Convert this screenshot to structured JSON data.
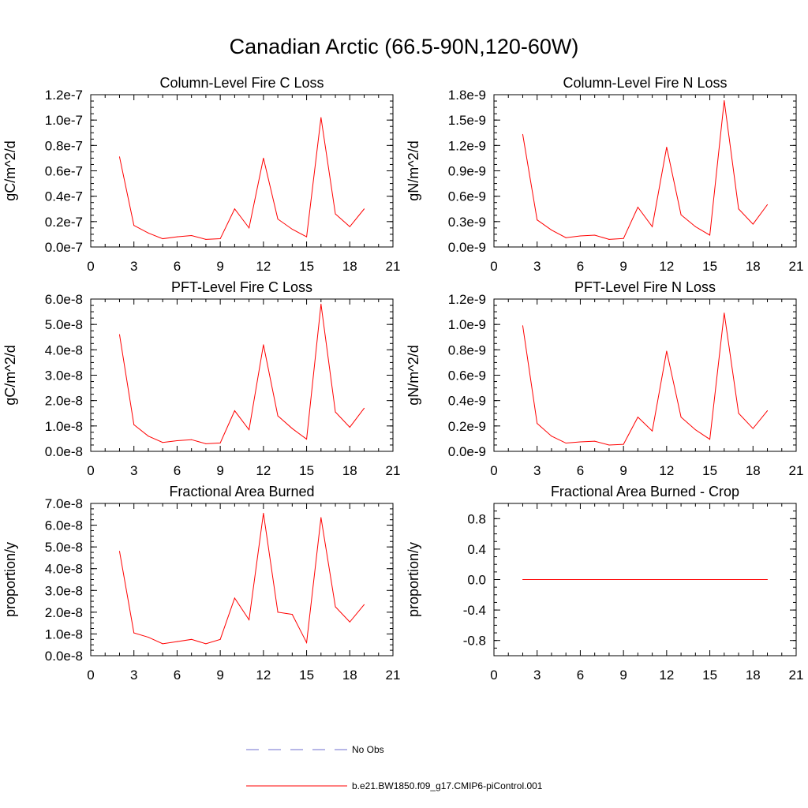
{
  "title": "Canadian Arctic (66.5-90N,120-60W)",
  "colors": {
    "series": "#ff0000",
    "obs": "#6f6fcf",
    "axis": "#000000"
  },
  "legend": {
    "obs_label": "No Obs",
    "model_label": "b.e21.BW1850.f09_g17.CMIP6-piControl.001"
  },
  "chart_data": [
    {
      "type": "line",
      "title": "Column-Level Fire C Loss",
      "ylabel": "gC/m^2/d",
      "xlim": [
        0,
        21
      ],
      "xticks": [
        "0",
        "3",
        "6",
        "9",
        "12",
        "15",
        "18",
        "21"
      ],
      "ylim": [
        0,
        1.2e-07
      ],
      "yticks": [
        "0.0e-7",
        "0.2e-7",
        "0.4e-7",
        "0.6e-7",
        "0.8e-7",
        "1.0e-7",
        "1.2e-7"
      ],
      "series": [
        {
          "name": "b.e21.BW1850.f09_g17.CMIP6-piControl.001",
          "x": [
            2,
            3,
            4,
            5,
            6,
            7,
            8,
            9,
            10,
            11,
            12,
            13,
            14,
            15,
            16,
            17,
            18,
            19
          ],
          "values": [
            7.1e-08,
            1.7e-08,
            1.1e-08,
            6.5e-09,
            8e-09,
            9e-09,
            6e-09,
            6.5e-09,
            3e-08,
            1.5e-08,
            7e-08,
            2.2e-08,
            1.4e-08,
            8e-09,
            1.02e-07,
            2.6e-08,
            1.6e-08,
            3e-08
          ]
        }
      ]
    },
    {
      "type": "line",
      "title": "Column-Level Fire N Loss",
      "ylabel": "gN/m^2/d",
      "xlim": [
        0,
        21
      ],
      "xticks": [
        "0",
        "3",
        "6",
        "9",
        "12",
        "15",
        "18",
        "21"
      ],
      "ylim": [
        0,
        1.8e-09
      ],
      "yticks": [
        "0.0e-9",
        "0.3e-9",
        "0.6e-9",
        "0.9e-9",
        "1.2e-9",
        "1.5e-9",
        "1.8e-9"
      ],
      "series": [
        {
          "name": "b.e21.BW1850.f09_g17.CMIP6-piControl.001",
          "x": [
            2,
            3,
            4,
            5,
            6,
            7,
            8,
            9,
            10,
            11,
            12,
            13,
            14,
            15,
            16,
            17,
            18,
            19
          ],
          "values": [
            1.33e-09,
            3.2e-10,
            2e-10,
            1.1e-10,
            1.3e-10,
            1.4e-10,
            9e-11,
            1e-10,
            4.7e-10,
            2.4e-10,
            1.18e-09,
            3.8e-10,
            2.4e-10,
            1.4e-10,
            1.73e-09,
            4.5e-10,
            2.7e-10,
            5e-10
          ]
        }
      ]
    },
    {
      "type": "line",
      "title": "PFT-Level Fire C Loss",
      "ylabel": "gC/m^2/d",
      "xlim": [
        0,
        21
      ],
      "xticks": [
        "0",
        "3",
        "6",
        "9",
        "12",
        "15",
        "18",
        "21"
      ],
      "ylim": [
        0,
        6e-08
      ],
      "yticks": [
        "0.0e-8",
        "1.0e-8",
        "2.0e-8",
        "3.0e-8",
        "4.0e-8",
        "5.0e-8",
        "6.0e-8"
      ],
      "series": [
        {
          "name": "b.e21.BW1850.f09_g17.CMIP6-piControl.001",
          "x": [
            2,
            3,
            4,
            5,
            6,
            7,
            8,
            9,
            10,
            11,
            12,
            13,
            14,
            15,
            16,
            17,
            18,
            19
          ],
          "values": [
            4.6e-08,
            1.05e-08,
            6e-09,
            3.5e-09,
            4.2e-09,
            4.6e-09,
            3e-09,
            3.3e-09,
            1.6e-08,
            8.5e-09,
            4.2e-08,
            1.4e-08,
            9e-09,
            4.8e-09,
            5.8e-08,
            1.55e-08,
            9.5e-09,
            1.7e-08
          ]
        }
      ]
    },
    {
      "type": "line",
      "title": "PFT-Level Fire N Loss",
      "ylabel": "gN/m^2/d",
      "xlim": [
        0,
        21
      ],
      "xticks": [
        "0",
        "3",
        "6",
        "9",
        "12",
        "15",
        "18",
        "21"
      ],
      "ylim": [
        0,
        1.2e-09
      ],
      "yticks": [
        "0.0e-9",
        "0.2e-9",
        "0.4e-9",
        "0.6e-9",
        "0.8e-9",
        "1.0e-9",
        "1.2e-9"
      ],
      "series": [
        {
          "name": "b.e21.BW1850.f09_g17.CMIP6-piControl.001",
          "x": [
            2,
            3,
            4,
            5,
            6,
            7,
            8,
            9,
            10,
            11,
            12,
            13,
            14,
            15,
            16,
            17,
            18,
            19
          ],
          "values": [
            9.9e-10,
            2.2e-10,
            1.2e-10,
            6.5e-11,
            7.5e-11,
            8e-11,
            5e-11,
            5.5e-11,
            2.7e-10,
            1.6e-10,
            7.9e-10,
            2.7e-10,
            1.7e-10,
            9.5e-11,
            1.09e-09,
            3e-10,
            1.8e-10,
            3.2e-10
          ]
        }
      ]
    },
    {
      "type": "line",
      "title": "Fractional Area Burned",
      "ylabel": "proportion/y",
      "xlim": [
        0,
        21
      ],
      "xticks": [
        "0",
        "3",
        "6",
        "9",
        "12",
        "15",
        "18",
        "21"
      ],
      "ylim": [
        0,
        7e-08
      ],
      "yticks": [
        "0.0e-8",
        "1.0e-8",
        "2.0e-8",
        "3.0e-8",
        "4.0e-8",
        "5.0e-8",
        "6.0e-8",
        "7.0e-8"
      ],
      "series": [
        {
          "name": "b.e21.BW1850.f09_g17.CMIP6-piControl.001",
          "x": [
            2,
            3,
            4,
            5,
            6,
            7,
            8,
            9,
            10,
            11,
            12,
            13,
            14,
            15,
            16,
            17,
            18,
            19
          ],
          "values": [
            4.8e-08,
            1.05e-08,
            8.5e-09,
            5.5e-09,
            6.5e-09,
            7.5e-09,
            5.5e-09,
            7.5e-09,
            2.65e-08,
            1.65e-08,
            6.55e-08,
            2e-08,
            1.9e-08,
            6e-09,
            6.35e-08,
            2.25e-08,
            1.55e-08,
            2.35e-08
          ]
        }
      ]
    },
    {
      "type": "line",
      "title": "Fractional Area Burned - Crop",
      "ylabel": "proportion/y",
      "xlim": [
        0,
        21
      ],
      "xticks": [
        "0",
        "3",
        "6",
        "9",
        "12",
        "15",
        "18",
        "21"
      ],
      "ylim": [
        -1.0,
        1.0
      ],
      "yticks": [
        "-0.8",
        "-0.4",
        "0.0",
        "0.4",
        "0.8"
      ],
      "ytick_values": [
        -0.8,
        -0.4,
        0.0,
        0.4,
        0.8
      ],
      "series": [
        {
          "name": "b.e21.BW1850.f09_g17.CMIP6-piControl.001",
          "x": [
            2,
            3,
            4,
            5,
            6,
            7,
            8,
            9,
            10,
            11,
            12,
            13,
            14,
            15,
            16,
            17,
            18,
            19
          ],
          "values": [
            0,
            0,
            0,
            0,
            0,
            0,
            0,
            0,
            0,
            0,
            0,
            0,
            0,
            0,
            0,
            0,
            0,
            0
          ]
        }
      ]
    }
  ]
}
